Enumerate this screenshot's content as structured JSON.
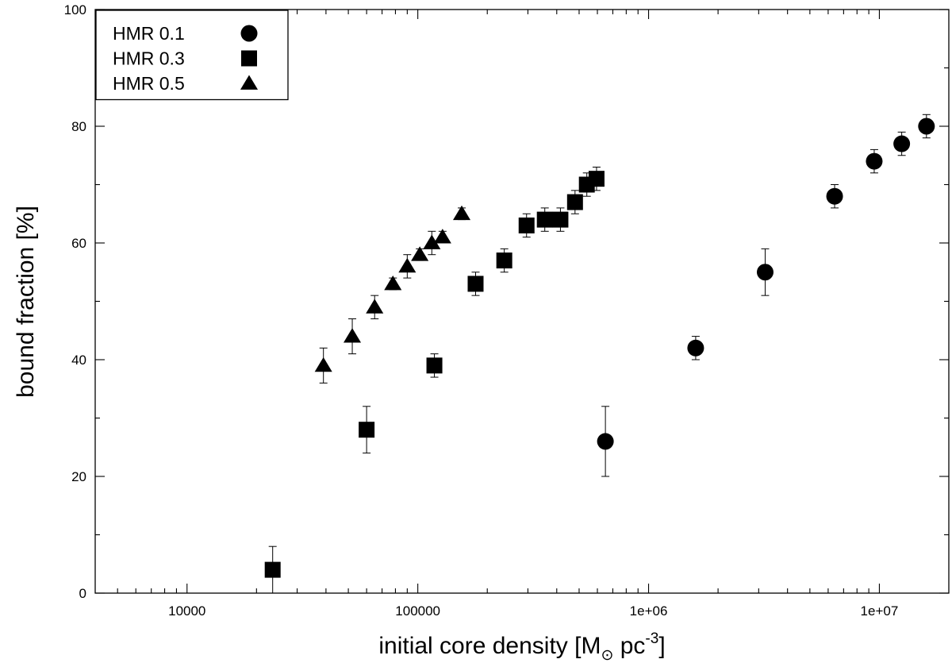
{
  "chart_data": {
    "type": "scatter",
    "title": "",
    "xlabel": {
      "prefix": "initial core density [M",
      "sub": "⊙",
      "middle": " pc",
      "sup": "-3",
      "suffix": "]"
    },
    "ylabel": "bound fraction [%]",
    "x_scale": "log",
    "xlim": [
      4000,
      20000000
    ],
    "ylim": [
      0,
      100
    ],
    "x_ticks": [
      {
        "value": 10000,
        "label": "10000"
      },
      {
        "value": 100000,
        "label": "100000"
      },
      {
        "value": 1000000,
        "label": "1e+06"
      },
      {
        "value": 10000000,
        "label": "1e+07"
      }
    ],
    "y_ticks": [
      {
        "value": 0,
        "label": "0"
      },
      {
        "value": 20,
        "label": "20"
      },
      {
        "value": 40,
        "label": "40"
      },
      {
        "value": 60,
        "label": "60"
      },
      {
        "value": 80,
        "label": "80"
      },
      {
        "value": 100,
        "label": "100"
      }
    ],
    "grid": false,
    "legend_position": "top-left",
    "series": [
      {
        "name": "HMR 0.1",
        "marker": "circle",
        "points": [
          {
            "x": 650000,
            "y": 26,
            "err_low": 20,
            "err_high": 32
          },
          {
            "x": 1600000,
            "y": 42,
            "err_low": 40,
            "err_high": 44
          },
          {
            "x": 3200000,
            "y": 55,
            "err_low": 51,
            "err_high": 59
          },
          {
            "x": 6400000,
            "y": 68,
            "err_low": 66,
            "err_high": 70
          },
          {
            "x": 9500000,
            "y": 74,
            "err_low": 72,
            "err_high": 76
          },
          {
            "x": 12500000,
            "y": 77,
            "err_low": 75,
            "err_high": 79
          },
          {
            "x": 16000000,
            "y": 80,
            "err_low": 78,
            "err_high": 82
          }
        ]
      },
      {
        "name": "HMR 0.3",
        "marker": "square",
        "points": [
          {
            "x": 23500,
            "y": 4,
            "err_low": 0,
            "err_high": 8
          },
          {
            "x": 60000,
            "y": 28,
            "err_low": 24,
            "err_high": 32
          },
          {
            "x": 118000,
            "y": 39,
            "err_low": 37,
            "err_high": 41
          },
          {
            "x": 178000,
            "y": 53,
            "err_low": 51,
            "err_high": 55
          },
          {
            "x": 237000,
            "y": 57,
            "err_low": 55,
            "err_high": 59
          },
          {
            "x": 296000,
            "y": 63,
            "err_low": 61,
            "err_high": 65
          },
          {
            "x": 355000,
            "y": 64,
            "err_low": 62,
            "err_high": 66
          },
          {
            "x": 415000,
            "y": 64,
            "err_low": 62,
            "err_high": 66
          },
          {
            "x": 480000,
            "y": 67,
            "err_low": 65,
            "err_high": 69
          },
          {
            "x": 540000,
            "y": 70,
            "err_low": 68,
            "err_high": 72
          },
          {
            "x": 595000,
            "y": 71,
            "err_low": 69,
            "err_high": 73
          }
        ]
      },
      {
        "name": "HMR 0.5",
        "marker": "triangle",
        "points": [
          {
            "x": 39000,
            "y": 39,
            "err_low": 36,
            "err_high": 42
          },
          {
            "x": 52000,
            "y": 44,
            "err_low": 41,
            "err_high": 47
          },
          {
            "x": 65000,
            "y": 49,
            "err_low": 47,
            "err_high": 51
          },
          {
            "x": 78000,
            "y": 53,
            "err_low": 52,
            "err_high": 54
          },
          {
            "x": 90000,
            "y": 56,
            "err_low": 54,
            "err_high": 58
          },
          {
            "x": 102000,
            "y": 58,
            "err_low": 57,
            "err_high": 59
          },
          {
            "x": 115000,
            "y": 60,
            "err_low": 58,
            "err_high": 62
          },
          {
            "x": 128000,
            "y": 61,
            "err_low": 60,
            "err_high": 62
          },
          {
            "x": 155000,
            "y": 65,
            "err_low": 64,
            "err_high": 66
          }
        ]
      }
    ]
  }
}
